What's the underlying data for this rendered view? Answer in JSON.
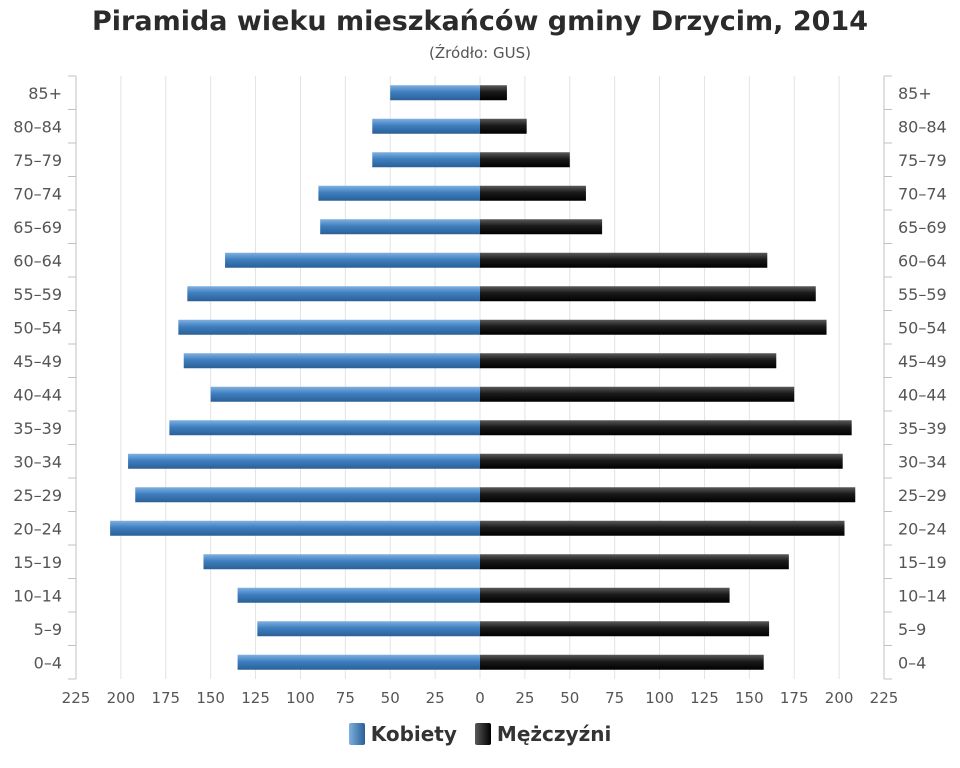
{
  "chart_data": {
    "type": "bar",
    "title": "Piramida wieku mieszkańców gminy Drzycim, 2014",
    "subtitle": "(Źródło: GUS)",
    "categories": [
      "85+",
      "80–84",
      "75–79",
      "70–74",
      "65–69",
      "60–64",
      "55–59",
      "50–54",
      "45–49",
      "40–44",
      "35–39",
      "30–34",
      "25–29",
      "20–24",
      "15–19",
      "10–14",
      "5–9",
      "0–4"
    ],
    "series": [
      {
        "name": "Kobiety",
        "color": "#4a86c5",
        "values": [
          50,
          60,
          60,
          90,
          89,
          142,
          163,
          168,
          165,
          150,
          173,
          196,
          192,
          206,
          154,
          135,
          124,
          135
        ]
      },
      {
        "name": "Mężczyźni",
        "color": "#1a1a1a",
        "values": [
          15,
          26,
          50,
          59,
          68,
          160,
          187,
          193,
          165,
          175,
          207,
          202,
          209,
          203,
          172,
          139,
          161,
          158
        ]
      }
    ],
    "xlim": [
      -225,
      225
    ],
    "x_ticks": [
      "225",
      "200",
      "175",
      "150",
      "125",
      "100",
      "75",
      "50",
      "25",
      "0",
      "25",
      "50",
      "75",
      "100",
      "125",
      "150",
      "175",
      "200",
      "225"
    ],
    "grid": true,
    "legend_position": "bottom"
  }
}
